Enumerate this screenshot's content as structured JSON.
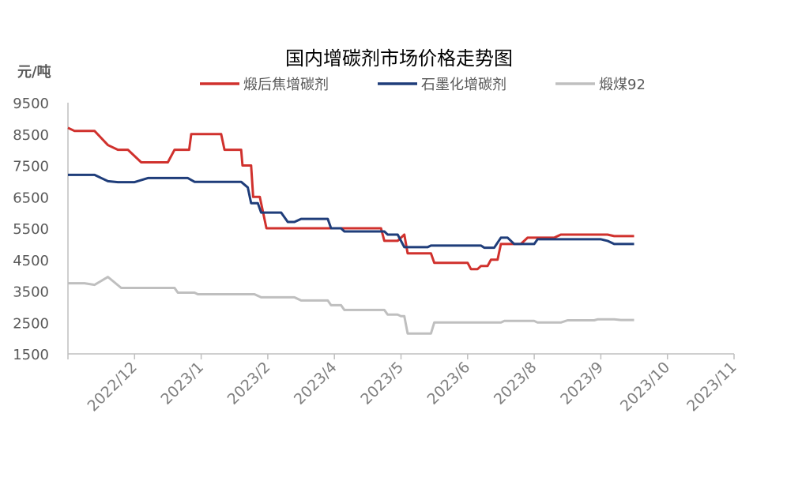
{
  "chart_data": {
    "type": "line",
    "title": "国内增碳剂市场价格走势图",
    "ylabel": "元/吨",
    "ylim": [
      1500,
      9500
    ],
    "yticks": [
      1500,
      2500,
      3500,
      4500,
      5500,
      6500,
      7500,
      8500,
      9500
    ],
    "xticks": [
      "2022/12",
      "2023/1",
      "2023/2",
      "2023/4",
      "2023/5",
      "2023/6",
      "2023/8",
      "2023/9",
      "2023/10",
      "2023/11"
    ],
    "legend_position": "top",
    "series": [
      {
        "name": "煅后焦增碳剂",
        "color": "#d0312d",
        "points": [
          [
            0,
            8700
          ],
          [
            0.1,
            8600
          ],
          [
            0.4,
            8600
          ],
          [
            0.6,
            8150
          ],
          [
            0.75,
            8000
          ],
          [
            0.9,
            8000
          ],
          [
            1.1,
            7600
          ],
          [
            1.5,
            7600
          ],
          [
            1.6,
            8000
          ],
          [
            1.82,
            8000
          ],
          [
            1.85,
            8500
          ],
          [
            2.3,
            8500
          ],
          [
            2.35,
            8000
          ],
          [
            2.6,
            8000
          ],
          [
            2.62,
            7500
          ],
          [
            2.75,
            7500
          ],
          [
            2.78,
            6500
          ],
          [
            2.88,
            6500
          ],
          [
            2.98,
            5500
          ],
          [
            4.3,
            5500
          ],
          [
            4.7,
            5500
          ],
          [
            4.75,
            5100
          ],
          [
            4.95,
            5100
          ],
          [
            5.05,
            5300
          ],
          [
            5.1,
            4700
          ],
          [
            5.45,
            4700
          ],
          [
            5.5,
            4400
          ],
          [
            6.0,
            4400
          ],
          [
            6.05,
            4200
          ],
          [
            6.15,
            4200
          ],
          [
            6.2,
            4300
          ],
          [
            6.3,
            4300
          ],
          [
            6.35,
            4500
          ],
          [
            6.45,
            4500
          ],
          [
            6.5,
            5000
          ],
          [
            6.8,
            5000
          ],
          [
            6.9,
            5200
          ],
          [
            7.3,
            5200
          ],
          [
            7.4,
            5300
          ],
          [
            8.1,
            5300
          ],
          [
            8.2,
            5250
          ],
          [
            8.5,
            5250
          ]
        ]
      },
      {
        "name": "石墨化增碳剂",
        "color": "#1f3d7a",
        "points": [
          [
            0,
            7200
          ],
          [
            0.4,
            7200
          ],
          [
            0.6,
            7000
          ],
          [
            0.75,
            6970
          ],
          [
            1.0,
            6970
          ],
          [
            1.2,
            7100
          ],
          [
            1.8,
            7100
          ],
          [
            1.9,
            6980
          ],
          [
            2.6,
            6980
          ],
          [
            2.7,
            6800
          ],
          [
            2.75,
            6300
          ],
          [
            2.85,
            6300
          ],
          [
            2.9,
            6000
          ],
          [
            3.2,
            6000
          ],
          [
            3.3,
            5700
          ],
          [
            3.4,
            5700
          ],
          [
            3.5,
            5800
          ],
          [
            3.9,
            5800
          ],
          [
            3.95,
            5500
          ],
          [
            4.1,
            5500
          ],
          [
            4.15,
            5400
          ],
          [
            4.75,
            5400
          ],
          [
            4.8,
            5300
          ],
          [
            4.95,
            5300
          ],
          [
            5.05,
            4900
          ],
          [
            5.4,
            4900
          ],
          [
            5.45,
            4950
          ],
          [
            6.2,
            4950
          ],
          [
            6.25,
            4880
          ],
          [
            6.4,
            4880
          ],
          [
            6.5,
            5200
          ],
          [
            6.6,
            5200
          ],
          [
            6.7,
            5000
          ],
          [
            7.0,
            5000
          ],
          [
            7.05,
            5150
          ],
          [
            8.0,
            5150
          ],
          [
            8.1,
            5100
          ],
          [
            8.2,
            5000
          ],
          [
            8.5,
            5000
          ]
        ]
      },
      {
        "name": "煅煤92",
        "color": "#bfbfbf",
        "points": [
          [
            0,
            3750
          ],
          [
            0.25,
            3750
          ],
          [
            0.4,
            3700
          ],
          [
            0.6,
            3950
          ],
          [
            0.8,
            3600
          ],
          [
            1.0,
            3600
          ],
          [
            1.6,
            3600
          ],
          [
            1.65,
            3450
          ],
          [
            1.9,
            3450
          ],
          [
            1.95,
            3400
          ],
          [
            2.0,
            3400
          ],
          [
            2.8,
            3400
          ],
          [
            2.9,
            3300
          ],
          [
            3.4,
            3300
          ],
          [
            3.5,
            3200
          ],
          [
            3.9,
            3200
          ],
          [
            3.95,
            3050
          ],
          [
            4.1,
            3050
          ],
          [
            4.15,
            2900
          ],
          [
            4.75,
            2900
          ],
          [
            4.8,
            2750
          ],
          [
            4.95,
            2750
          ],
          [
            5.0,
            2700
          ],
          [
            5.05,
            2700
          ],
          [
            5.1,
            2150
          ],
          [
            5.45,
            2150
          ],
          [
            5.5,
            2500
          ],
          [
            6.5,
            2500
          ],
          [
            6.55,
            2550
          ],
          [
            7.0,
            2550
          ],
          [
            7.05,
            2500
          ],
          [
            7.4,
            2500
          ],
          [
            7.5,
            2570
          ],
          [
            7.9,
            2570
          ],
          [
            7.95,
            2600
          ],
          [
            8.2,
            2600
          ],
          [
            8.3,
            2580
          ],
          [
            8.5,
            2580
          ]
        ]
      }
    ]
  }
}
